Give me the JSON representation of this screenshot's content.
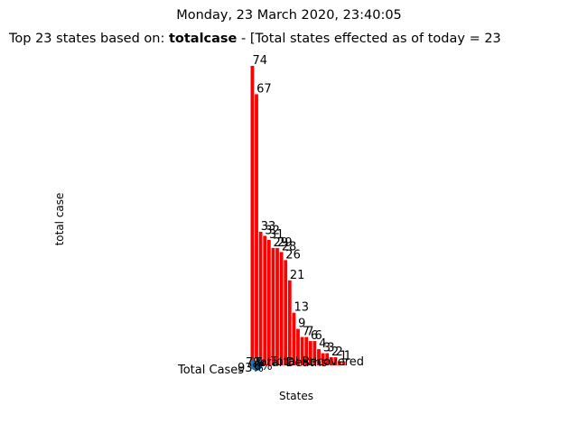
{
  "header": {
    "datetime": "Monday, 23 March 2020, 23:40:05",
    "title_prefix": "Top 23 states based on: ",
    "title_metric": "totalcase",
    "title_suffix": " - [Total states effected as of today = 23"
  },
  "chart_data": {
    "type": "bar",
    "title": "Top 23 states based on: totalcase - [Total states effected as of today = 23",
    "xlabel": "States",
    "ylabel": "total case",
    "values": [
      74,
      67,
      33,
      32,
      31,
      29,
      29,
      28,
      26,
      21,
      13,
      9,
      7,
      7,
      6,
      6,
      4,
      3,
      3,
      2,
      2,
      1,
      1
    ],
    "bar_labels": [
      "74",
      "67",
      "33",
      "32",
      "31",
      "29",
      "29",
      "28",
      "26",
      "21",
      "13",
      "9",
      "7",
      "7",
      "6",
      "6",
      "4",
      "3",
      "3",
      "2",
      "2",
      "1",
      "1"
    ],
    "ylim": [
      0,
      74
    ],
    "grid": false,
    "bar_color": "#ff0000",
    "pie_overlay": {
      "labels": [
        "Total Cases",
        "Total Deaths",
        "Total Recovered"
      ],
      "percent_labels": [
        "93%",
        "7%",
        "0%"
      ],
      "colors": [
        "#1f77b4",
        "#ff7f0e",
        "#2ca02c"
      ]
    }
  }
}
